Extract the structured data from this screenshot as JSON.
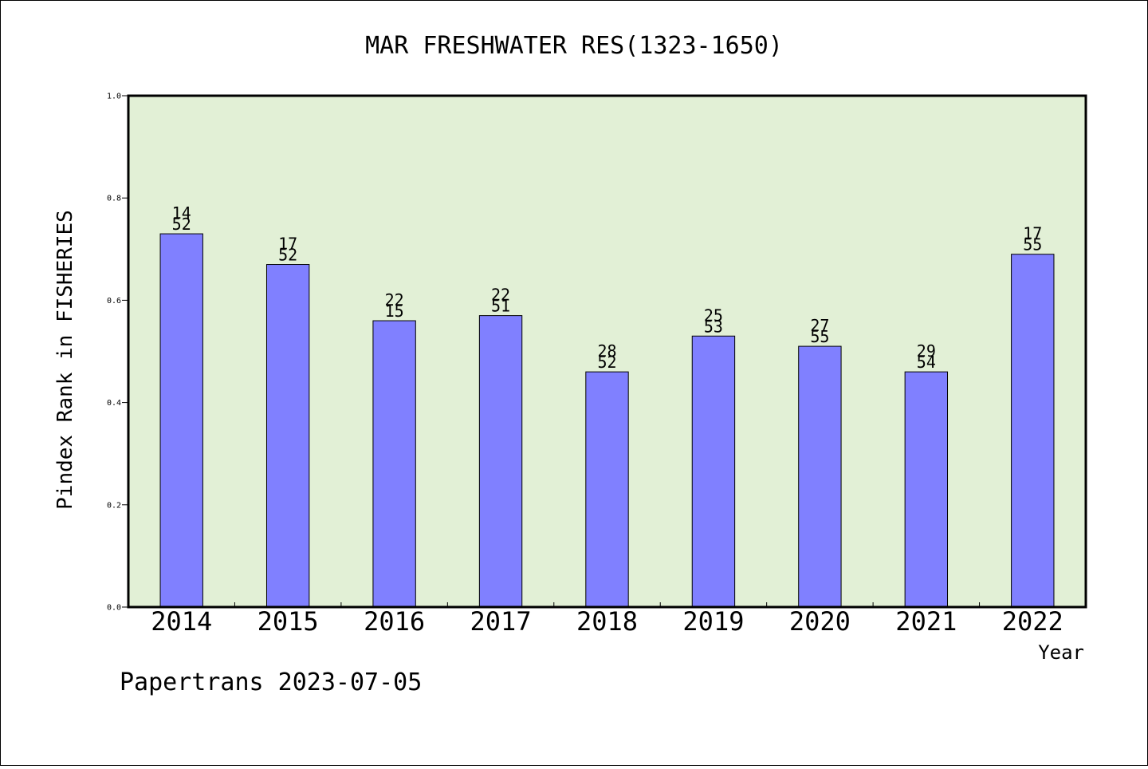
{
  "chart_data": {
    "type": "bar",
    "title": "MAR FRESHWATER RES(1323-1650)",
    "xlabel": "Year",
    "ylabel": "Pindex Rank in FISHERIES",
    "ylim": [
      0,
      1.0
    ],
    "yticks": [
      "0.0",
      "0.2",
      "0.4",
      "0.6",
      "0.8",
      "1.0"
    ],
    "categories": [
      "2014",
      "2015",
      "2016",
      "2017",
      "2018",
      "2019",
      "2020",
      "2021",
      "2022"
    ],
    "values": [
      0.73,
      0.67,
      0.56,
      0.57,
      0.46,
      0.53,
      0.51,
      0.46,
      0.69
    ],
    "labels_top": [
      "14",
      "17",
      "22",
      "22",
      "28",
      "25",
      "27",
      "29",
      "17"
    ],
    "labels_bottom": [
      "52",
      "52",
      "15",
      "51",
      "52",
      "53",
      "55",
      "54",
      "55"
    ],
    "grid": false,
    "colors": {
      "plot_background": "#e2f0d6",
      "bar_fill": "#8080ff",
      "bar_stroke": "#000000"
    }
  },
  "footer": "Papertrans 2023-07-05"
}
